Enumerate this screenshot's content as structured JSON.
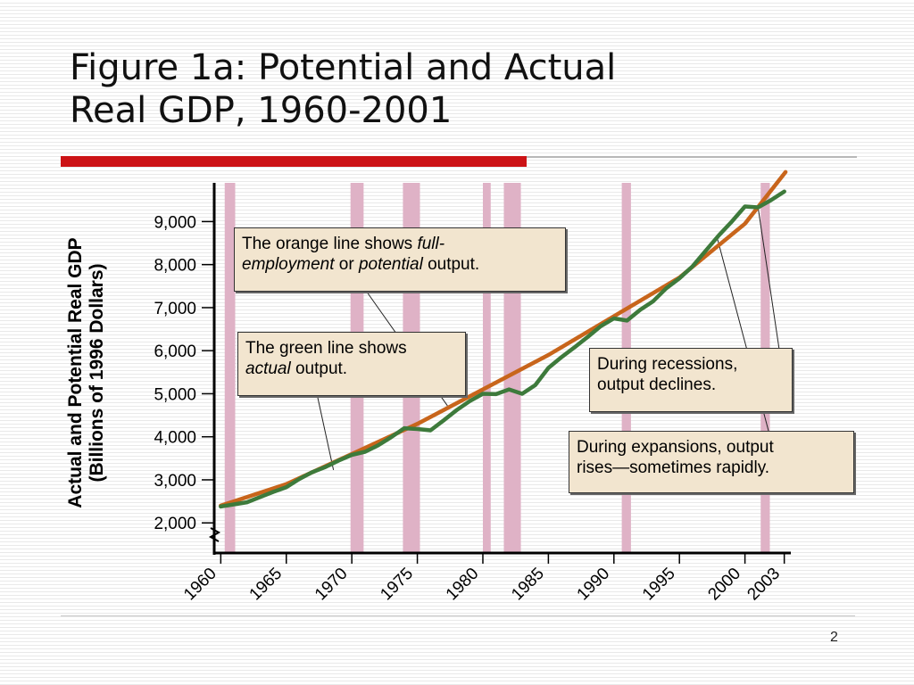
{
  "slide": {
    "title_line1": "Figure 1a:  Potential and Actual",
    "title_line2": "Real GDP, 1960-2001",
    "page_number": "2",
    "accent_color": "#cc1316"
  },
  "chart_data": {
    "type": "line",
    "title": "Figure 1a:  Potential and Actual Real GDP, 1960-2001",
    "ylabel_line1": "Actual and Potential Real GDP",
    "ylabel_line2": "(Billions of 1996 Dollars)",
    "xlim": [
      1959.5,
      2003.5
    ],
    "ylim": [
      1300,
      9900
    ],
    "axis_break": true,
    "grid": false,
    "x_ticks": [
      1960,
      1965,
      1970,
      1975,
      1980,
      1985,
      1990,
      1995,
      2000,
      2003
    ],
    "y_ticks": [
      2000,
      3000,
      4000,
      5000,
      6000,
      7000,
      8000,
      9000
    ],
    "y_tick_labels": [
      "2,000",
      "3,000",
      "4,000",
      "5,000",
      "6,000",
      "7,000",
      "8,000",
      "9,000"
    ],
    "recessions": [
      [
        1960.3,
        1961.1
      ],
      [
        1969.9,
        1970.9
      ],
      [
        1973.9,
        1975.2
      ],
      [
        1980.0,
        1980.6
      ],
      [
        1981.6,
        1982.9
      ],
      [
        1990.6,
        1991.3
      ],
      [
        2001.2,
        2001.9
      ]
    ],
    "recession_color": "#dfb2c6",
    "series": [
      {
        "color": "#c8651b",
        "x": [
          1960,
          1965,
          1970,
          1975,
          1980,
          1985,
          1990,
          1995,
          2000,
          2003.1
        ],
        "y": [
          2400,
          2900,
          3600,
          4300,
          5100,
          5900,
          6800,
          7700,
          8950,
          10150
        ]
      },
      {
        "color": "#3d7a3b",
        "x": [
          1960,
          1961,
          1962,
          1963,
          1964,
          1965,
          1966,
          1967,
          1968,
          1969,
          1970,
          1971,
          1972,
          1973,
          1974,
          1975,
          1976,
          1977,
          1978,
          1979,
          1980,
          1981,
          1982,
          1983,
          1984,
          1985,
          1986,
          1987,
          1988,
          1989,
          1990,
          1991,
          1992,
          1993,
          1994,
          1995,
          1996,
          1997,
          1998,
          1999,
          2000,
          2001,
          2002,
          2003
        ],
        "y": [
          2380,
          2430,
          2480,
          2600,
          2720,
          2830,
          3020,
          3180,
          3300,
          3450,
          3580,
          3650,
          3800,
          3990,
          4200,
          4180,
          4150,
          4380,
          4620,
          4830,
          5000,
          4990,
          5100,
          5000,
          5200,
          5600,
          5850,
          6080,
          6320,
          6570,
          6750,
          6700,
          6950,
          7150,
          7450,
          7680,
          7960,
          8320,
          8680,
          9000,
          9350,
          9330,
          9500,
          9700
        ]
      }
    ],
    "annotations": {
      "orange_note": {
        "t1": "The orange line shows ",
        "t2": "full-",
        "t3": "employment",
        "t4": " or ",
        "t5": "potential",
        "t6": " output."
      },
      "green_note": {
        "t1": "The green line shows",
        "t2": "actual",
        "t3": " output."
      },
      "recession_note": {
        "t1": "During recessions,",
        "t2": "output declines."
      },
      "expansion_note": {
        "t1": "During expansions, output",
        "t2": "rises—sometimes rapidly."
      }
    }
  }
}
